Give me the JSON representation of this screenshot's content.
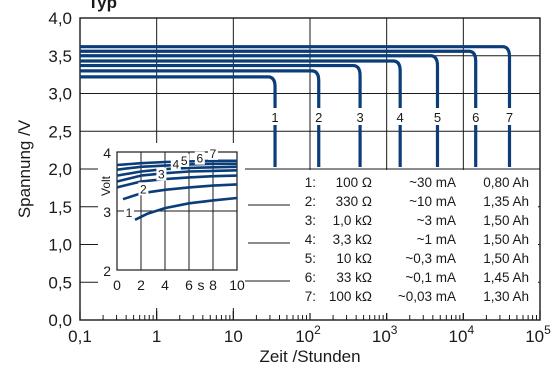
{
  "chart_data": [
    {
      "id": "main",
      "type": "line",
      "title": "Typ",
      "xlabel": "Zeit /Stunden",
      "ylabel": "Spannung /V",
      "xscale": "log",
      "xlim": [
        0.1,
        100000
      ],
      "ylim": [
        0.0,
        4.0
      ],
      "x_tick_labels": [
        {
          "x": 0.1,
          "base": "0,1",
          "exp": ""
        },
        {
          "x": 1,
          "base": "1",
          "exp": ""
        },
        {
          "x": 10,
          "base": "10",
          "exp": ""
        },
        {
          "x": 100,
          "base": "10",
          "exp": "2"
        },
        {
          "x": 1000,
          "base": "10",
          "exp": "3"
        },
        {
          "x": 10000,
          "base": "10",
          "exp": "4"
        },
        {
          "x": 100000,
          "base": "10",
          "exp": "5"
        }
      ],
      "y_ticks": [
        0.0,
        0.5,
        1.0,
        1.5,
        2.0,
        2.5,
        3.0,
        3.5,
        4.0
      ],
      "y_tick_labels": [
        "0,0",
        "0,5",
        "1,0",
        "1,5",
        "2,0",
        "2,5",
        "3,0",
        "3,5",
        "4,0"
      ],
      "grid": true,
      "line_color": "#0b3d78",
      "series": [
        {
          "name": "1",
          "plateau": 3.22,
          "end_hours": 35
        },
        {
          "name": "2",
          "plateau": 3.3,
          "end_hours": 130
        },
        {
          "name": "3",
          "plateau": 3.37,
          "end_hours": 450
        },
        {
          "name": "4",
          "plateau": 3.43,
          "end_hours": 1500
        },
        {
          "name": "5",
          "plateau": 3.5,
          "end_hours": 4600
        },
        {
          "name": "6",
          "plateau": 3.56,
          "end_hours": 14500
        },
        {
          "name": "7",
          "plateau": 3.62,
          "end_hours": 40000
        }
      ],
      "table": [
        {
          "id": "1:",
          "load": "100 Ω",
          "current": "~30 mA",
          "capacity": "0,80 Ah"
        },
        {
          "id": "2:",
          "load": "330 Ω",
          "current": "~10 mA",
          "capacity": "1,35 Ah"
        },
        {
          "id": "3:",
          "load": "1,0 kΩ",
          "current": "~3 mA",
          "capacity": "1,50 Ah"
        },
        {
          "id": "4:",
          "load": "3,3 kΩ",
          "current": "~1 mA",
          "capacity": "1,50 Ah"
        },
        {
          "id": "5:",
          "load": "10 kΩ",
          "current": "~0,3 mA",
          "capacity": "1,50 Ah"
        },
        {
          "id": "6:",
          "load": "33 kΩ",
          "current": "~0,1 mA",
          "capacity": "1,45 Ah"
        },
        {
          "id": "7:",
          "load": "100 kΩ",
          "current": "~0,03 mA",
          "capacity": "1,30 Ah"
        }
      ]
    },
    {
      "id": "inset",
      "type": "line",
      "xlabel": "s",
      "ylabel": "Volt",
      "xlim": [
        0,
        10
      ],
      "ylim": [
        2,
        4
      ],
      "x_ticks": [
        0,
        2,
        4,
        6,
        8,
        10
      ],
      "x_tick_labels": [
        "0",
        "2",
        "4",
        "6",
        "8",
        "10"
      ],
      "y_ticks": [
        2,
        3,
        4
      ],
      "y_tick_labels": [
        "2",
        "3",
        "4"
      ],
      "grid": true,
      "series": [
        {
          "name": "1",
          "x": [
            1.5,
            2.5,
            4,
            6,
            8,
            10
          ],
          "y": [
            2.85,
            2.95,
            3.05,
            3.13,
            3.18,
            3.22
          ]
        },
        {
          "name": "2",
          "x": [
            0.5,
            2,
            4,
            6,
            8,
            10
          ],
          "y": [
            3.2,
            3.3,
            3.36,
            3.4,
            3.43,
            3.45
          ]
        },
        {
          "name": "3",
          "x": [
            0,
            2,
            4,
            6,
            8,
            10
          ],
          "y": [
            3.4,
            3.5,
            3.54,
            3.57,
            3.59,
            3.6
          ]
        },
        {
          "name": "4",
          "x": [
            0,
            2,
            4,
            6,
            8,
            10
          ],
          "y": [
            3.5,
            3.6,
            3.64,
            3.67,
            3.68,
            3.69
          ]
        },
        {
          "name": "5",
          "x": [
            0,
            2,
            4,
            6,
            8,
            10
          ],
          "y": [
            3.6,
            3.67,
            3.71,
            3.73,
            3.74,
            3.75
          ]
        },
        {
          "name": "6",
          "x": [
            0,
            2,
            4,
            6,
            8,
            10
          ],
          "y": [
            3.7,
            3.75,
            3.77,
            3.79,
            3.8,
            3.8
          ]
        },
        {
          "name": "7",
          "x": [
            0,
            2,
            4,
            6,
            8,
            10
          ],
          "y": [
            3.78,
            3.81,
            3.83,
            3.84,
            3.85,
            3.85
          ]
        }
      ],
      "curve_labels": [
        {
          "name": "1",
          "x": 1.0,
          "y": 2.9
        },
        {
          "name": "2",
          "x": 2.2,
          "y": 3.3
        },
        {
          "name": "3",
          "x": 3.7,
          "y": 3.55
        },
        {
          "name": "4",
          "x": 4.9,
          "y": 3.72
        },
        {
          "name": "5",
          "x": 5.6,
          "y": 3.78
        },
        {
          "name": "6",
          "x": 6.9,
          "y": 3.82
        },
        {
          "name": "7",
          "x": 8.0,
          "y": 3.9
        }
      ]
    }
  ]
}
